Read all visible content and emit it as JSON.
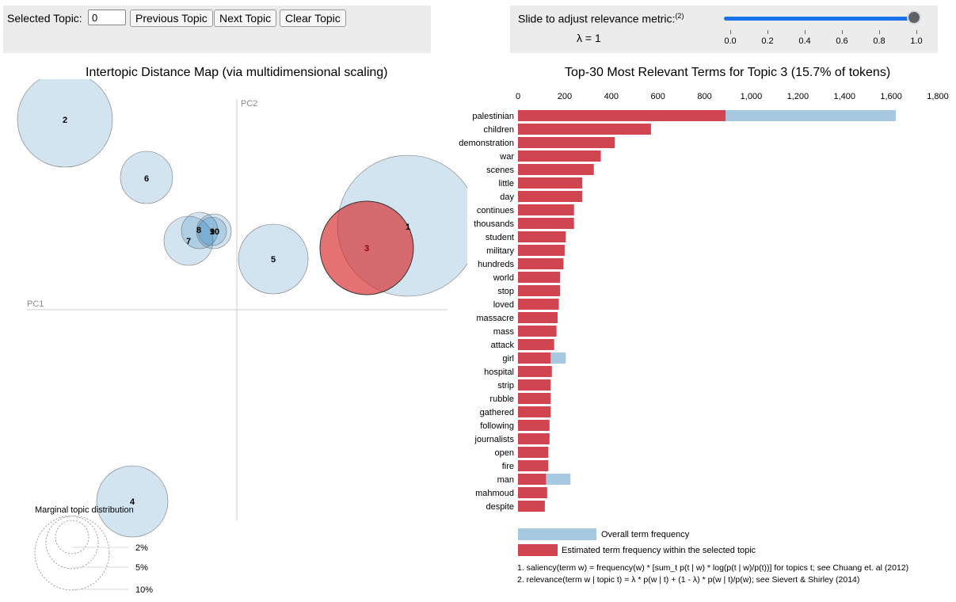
{
  "controls": {
    "selected_topic_label": "Selected Topic:",
    "selected_topic_value": "0",
    "prev_label": "Previous Topic",
    "next_label": "Next Topic",
    "clear_label": "Clear Topic"
  },
  "slider": {
    "label": "Slide to adjust relevance metric:",
    "footnote_ref": "(2)",
    "lambda_text": "λ = 1",
    "value": 1.0,
    "ticks": [
      "0.0",
      "0.2",
      "0.4",
      "0.6",
      "0.8",
      "1.0"
    ],
    "accent": "#1a73e8"
  },
  "map": {
    "title": "Intertopic Distance Map (via multidimensional scaling)",
    "axis_x": "PC1",
    "axis_y": "PC2",
    "selected_topic": "3",
    "topics": [
      {
        "id": "1"
      },
      {
        "id": "2"
      },
      {
        "id": "3"
      },
      {
        "id": "4"
      },
      {
        "id": "5"
      },
      {
        "id": "6"
      },
      {
        "id": "7"
      },
      {
        "id": "8"
      },
      {
        "id": "9"
      },
      {
        "id": "10"
      }
    ],
    "legend_title": "Marginal topic distribution",
    "legend_sizes": [
      "2%",
      "5%",
      "10%"
    ],
    "circle_color": "#b3d1e6",
    "selected_color": "#d62728"
  },
  "bars": {
    "title": "Top-30 Most Relevant Terms for Topic 3 (15.7% of tokens)",
    "legend_overall": "Overall term frequency",
    "legend_estimated": "Estimated term frequency within the selected topic",
    "footnote1": "1. saliency(term w) = frequency(w) * [sum_t p(t | w) * log(p(t | w)/p(t))] for topics t; see Chuang et. al (2012)",
    "footnote2": "2. relevance(term w | topic t) = λ * p(w | t) + (1 - λ) * p(w | t)/p(w); see Sievert & Shirley (2014)",
    "overall_color": "#a6c8e0",
    "estimated_color": "#d0454f"
  },
  "chart_data": {
    "type": "bar",
    "orientation": "horizontal",
    "title": "Top-30 Most Relevant Terms for Topic 3 (15.7% of tokens)",
    "xlim": [
      0,
      1800
    ],
    "x_ticks": [
      "0",
      "200",
      "400",
      "600",
      "800",
      "1,000",
      "1,200",
      "1,400",
      "1,600",
      "1,800"
    ],
    "categories": [
      "palestinian",
      "children",
      "demonstration",
      "war",
      "scenes",
      "little",
      "day",
      "continues",
      "thousands",
      "student",
      "military",
      "hundreds",
      "world",
      "stop",
      "loved",
      "massacre",
      "mass",
      "attack",
      "girl",
      "hospital",
      "strip",
      "rubble",
      "gathered",
      "following",
      "journalists",
      "open",
      "fire",
      "man",
      "mahmoud",
      "despite"
    ],
    "series": [
      {
        "name": "Overall term frequency",
        "values": [
          1620,
          570,
          415,
          355,
          325,
          275,
          275,
          240,
          240,
          205,
          200,
          195,
          180,
          180,
          175,
          170,
          165,
          155,
          205,
          145,
          140,
          140,
          140,
          135,
          135,
          130,
          130,
          225,
          125,
          115
        ]
      },
      {
        "name": "Estimated term frequency within the selected topic",
        "values": [
          890,
          570,
          415,
          355,
          325,
          275,
          275,
          240,
          240,
          205,
          200,
          195,
          180,
          180,
          175,
          170,
          165,
          155,
          140,
          145,
          140,
          140,
          140,
          135,
          135,
          130,
          130,
          120,
          125,
          115
        ]
      }
    ]
  }
}
